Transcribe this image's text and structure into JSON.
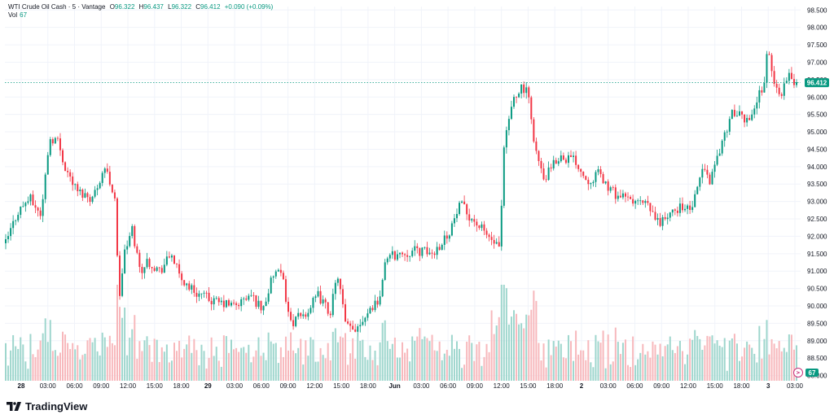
{
  "legend": {
    "symbol": "WTI Crude Oil Cash · 5 · Vantage",
    "open_key": "O",
    "open": "96.322",
    "high_key": "H",
    "high": "96.437",
    "low_key": "L",
    "low": "96.322",
    "close_key": "C",
    "close": "96.412",
    "change": "+0.090 (+0.09%)",
    "vol_label": "Vol",
    "vol_value": "67"
  },
  "brand": {
    "name": "TradingView",
    "icon": "tradingview-logo-icon"
  },
  "colors": {
    "up": "#089981",
    "down": "#f23645",
    "vol_up": "#9ed6cd",
    "vol_down": "#f7b8bc",
    "grid": "#f0f3fa",
    "price_line": "#089981"
  },
  "chart_data": {
    "type": "candlestick",
    "title": "WTI Crude Oil Cash · 5 · Vantage",
    "interval": "5",
    "ylim": [
      87.85,
      98.6
    ],
    "y_ticks": [
      "98.500",
      "98.000",
      "97.500",
      "97.000",
      "96.500",
      "96.000",
      "95.500",
      "95.000",
      "94.500",
      "94.000",
      "93.500",
      "93.000",
      "92.500",
      "92.000",
      "91.500",
      "91.000",
      "90.500",
      "90.000",
      "89.500",
      "89.000",
      "88.500",
      "88.000"
    ],
    "x_ticks": [
      "28",
      "03:00",
      "06:00",
      "09:00",
      "12:00",
      "15:00",
      "18:00",
      "29",
      "03:00",
      "06:00",
      "09:00",
      "12:00",
      "15:00",
      "18:00",
      "Jun",
      "03:00",
      "06:00",
      "09:00",
      "12:00",
      "15:00",
      "18:00",
      "2",
      "03:00",
      "06:00",
      "09:00",
      "12:00",
      "15:00",
      "18:00",
      "3",
      "03:00"
    ],
    "grid": true,
    "last_price": "96.412",
    "last_volume": "67",
    "volume_ylim": [
      0,
      130
    ],
    "price_path": [
      {
        "x": 0,
        "y": 91.8
      },
      {
        "x": 1.5,
        "y": 92.7
      },
      {
        "x": 3,
        "y": 93.1
      },
      {
        "x": 4.5,
        "y": 92.6
      },
      {
        "x": 5.5,
        "y": 94.8
      },
      {
        "x": 6.5,
        "y": 94.8
      },
      {
        "x": 7.5,
        "y": 94.0
      },
      {
        "x": 9,
        "y": 93.3
      },
      {
        "x": 11,
        "y": 93.1
      },
      {
        "x": 12.5,
        "y": 94.0
      },
      {
        "x": 14,
        "y": 93.0
      },
      {
        "x": 14.2,
        "y": 89.9
      },
      {
        "x": 15,
        "y": 91.5
      },
      {
        "x": 16,
        "y": 92.2
      },
      {
        "x": 17,
        "y": 91.0
      },
      {
        "x": 18,
        "y": 91.3
      },
      {
        "x": 19.5,
        "y": 91.0
      },
      {
        "x": 21,
        "y": 91.5
      },
      {
        "x": 22,
        "y": 90.8
      },
      {
        "x": 24,
        "y": 90.4
      },
      {
        "x": 26.5,
        "y": 90.1
      },
      {
        "x": 29,
        "y": 90.0
      },
      {
        "x": 31,
        "y": 90.3
      },
      {
        "x": 32.5,
        "y": 89.9
      },
      {
        "x": 34,
        "y": 91.0
      },
      {
        "x": 35,
        "y": 90.8
      },
      {
        "x": 36,
        "y": 89.5
      },
      {
        "x": 38,
        "y": 89.8
      },
      {
        "x": 39.5,
        "y": 90.3
      },
      {
        "x": 41,
        "y": 89.8
      },
      {
        "x": 42,
        "y": 90.9
      },
      {
        "x": 43,
        "y": 89.4
      },
      {
        "x": 44,
        "y": 89.3
      },
      {
        "x": 46,
        "y": 89.9
      },
      {
        "x": 47.5,
        "y": 90.3
      },
      {
        "x": 48,
        "y": 91.4
      },
      {
        "x": 50,
        "y": 91.5
      },
      {
        "x": 52,
        "y": 91.6
      },
      {
        "x": 54,
        "y": 91.5
      },
      {
        "x": 56,
        "y": 92.1
      },
      {
        "x": 57.5,
        "y": 92.9
      },
      {
        "x": 59,
        "y": 92.5
      },
      {
        "x": 61,
        "y": 92.0
      },
      {
        "x": 62.5,
        "y": 91.6
      },
      {
        "x": 63,
        "y": 94.5
      },
      {
        "x": 64,
        "y": 95.8
      },
      {
        "x": 65,
        "y": 96.3
      },
      {
        "x": 66,
        "y": 96.1
      },
      {
        "x": 67,
        "y": 94.5
      },
      {
        "x": 68,
        "y": 93.6
      },
      {
        "x": 70,
        "y": 94.3
      },
      {
        "x": 72,
        "y": 94.2
      },
      {
        "x": 73.5,
        "y": 93.6
      },
      {
        "x": 75,
        "y": 93.8
      },
      {
        "x": 76.5,
        "y": 93.3
      },
      {
        "x": 78,
        "y": 93.1
      },
      {
        "x": 79.5,
        "y": 93.0
      },
      {
        "x": 81,
        "y": 92.9
      },
      {
        "x": 82.5,
        "y": 92.4
      },
      {
        "x": 84,
        "y": 92.6
      },
      {
        "x": 85.5,
        "y": 92.9
      },
      {
        "x": 86.5,
        "y": 92.7
      },
      {
        "x": 87.5,
        "y": 93.3
      },
      {
        "x": 88,
        "y": 94.0
      },
      {
        "x": 89,
        "y": 93.6
      },
      {
        "x": 91,
        "y": 95.0
      },
      {
        "x": 92,
        "y": 95.6
      },
      {
        "x": 93.5,
        "y": 95.3
      },
      {
        "x": 94.5,
        "y": 95.6
      },
      {
        "x": 96,
        "y": 96.5
      },
      {
        "x": 96.4,
        "y": 97.6
      },
      {
        "x": 97,
        "y": 96.4
      },
      {
        "x": 98,
        "y": 96.1
      },
      {
        "x": 99,
        "y": 96.6
      },
      {
        "x": 100,
        "y": 96.4
      }
    ]
  }
}
